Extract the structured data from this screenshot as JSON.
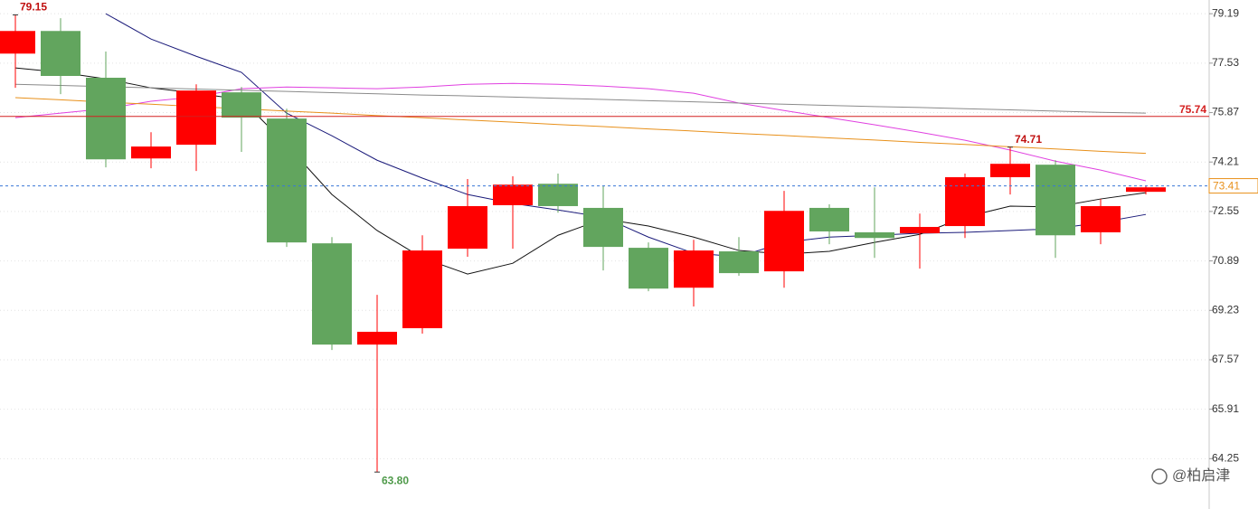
{
  "chart_data": {
    "type": "candlestick",
    "candles": {
      "open": [
        77.85,
        78.61,
        77.04,
        74.33,
        74.79,
        76.55,
        75.67,
        71.48,
        68.08,
        68.63,
        71.3,
        72.76,
        73.48,
        72.67,
        71.33,
        69.99,
        71.21,
        70.54,
        72.67,
        71.85,
        71.82,
        72.06,
        73.7,
        74.12,
        71.85,
        73.21
      ],
      "high": [
        79.15,
        79.04,
        77.92,
        75.21,
        76.82,
        76.73,
        76.0,
        71.69,
        69.75,
        71.75,
        73.64,
        73.73,
        73.82,
        73.42,
        71.51,
        71.6,
        71.69,
        73.24,
        72.79,
        73.36,
        72.48,
        73.82,
        74.71,
        74.27,
        72.97,
        73.42
      ],
      "low": [
        76.7,
        76.49,
        74.03,
        74.0,
        73.91,
        74.55,
        71.36,
        67.9,
        63.8,
        68.45,
        71.03,
        71.3,
        72.51,
        70.57,
        69.87,
        69.36,
        70.39,
        69.99,
        71.45,
        70.99,
        70.63,
        71.66,
        73.12,
        70.99,
        71.45,
        73.12
      ],
      "close": [
        78.61,
        77.1,
        74.3,
        74.73,
        76.61,
        75.7,
        71.51,
        68.08,
        68.51,
        71.24,
        72.73,
        73.45,
        72.73,
        71.36,
        69.96,
        71.24,
        70.48,
        72.57,
        71.88,
        71.66,
        72.03,
        73.7,
        74.15,
        71.75,
        72.73,
        73.36
      ]
    },
    "up_color": "#ff0000",
    "down_color": "#62a55e",
    "lines": [
      {
        "color": "#1a1a7a",
        "values": [
          null,
          null,
          79.19,
          78.34,
          77.76,
          77.22,
          75.85,
          75.09,
          74.27,
          73.67,
          73.12,
          72.82,
          72.6,
          72.36,
          71.69,
          71.15,
          71.03,
          71.51,
          71.69,
          71.75,
          71.82,
          71.85,
          71.91,
          71.97,
          72.18,
          72.45
        ]
      },
      {
        "color": "#111111",
        "values": [
          77.37,
          77.22,
          77.0,
          76.7,
          76.52,
          76.31,
          74.79,
          73.12,
          71.91,
          70.99,
          70.45,
          70.81,
          71.75,
          72.3,
          72.06,
          71.69,
          71.24,
          71.12,
          71.21,
          71.51,
          71.78,
          72.36,
          72.73,
          72.7,
          72.97,
          73.18
        ]
      },
      {
        "color": "#e040e0",
        "values": [
          75.7,
          75.85,
          76.0,
          76.25,
          76.4,
          76.67,
          76.73,
          76.7,
          76.67,
          76.73,
          76.82,
          76.85,
          76.82,
          76.76,
          76.67,
          76.52,
          76.19,
          75.94,
          75.7,
          75.46,
          75.21,
          74.94,
          74.61,
          74.24,
          73.94,
          73.58
        ]
      },
      {
        "color": "#e8901a",
        "values": [
          76.37,
          76.3,
          76.22,
          76.15,
          76.07,
          76.0,
          75.92,
          75.85,
          75.77,
          75.7,
          75.62,
          75.55,
          75.47,
          75.4,
          75.32,
          75.25,
          75.17,
          75.1,
          75.02,
          74.95,
          74.87,
          74.8,
          74.72,
          74.65,
          74.57,
          74.5
        ]
      },
      {
        "color": "#8a8a8a",
        "values": [
          76.82,
          76.78,
          76.74,
          76.7,
          76.66,
          76.62,
          76.58,
          76.54,
          76.5,
          76.46,
          76.43,
          76.39,
          76.35,
          76.31,
          76.27,
          76.23,
          76.19,
          76.15,
          76.11,
          76.07,
          76.04,
          76.0,
          75.96,
          75.92,
          75.88,
          75.85
        ]
      }
    ],
    "price_lines": [
      {
        "value": 75.74,
        "label": "75.74",
        "color": "#d42020",
        "dashed": false
      },
      {
        "value": 73.41,
        "label": "73.41",
        "color": "#3a78d8",
        "dashed": true,
        "label_color": "#e8901a"
      }
    ],
    "annotations": [
      {
        "index": 0,
        "field": "high",
        "label": "79.15",
        "color": "#c01010"
      },
      {
        "index": 22,
        "field": "high",
        "label": "74.71",
        "color": "#c01010"
      },
      {
        "index": 8,
        "field": "low",
        "label": "63.80",
        "color": "#4f9a4a"
      }
    ],
    "ylim": [
      62.56,
      79.65
    ],
    "yticks": [
      79.19,
      77.53,
      75.87,
      74.21,
      72.55,
      70.89,
      69.23,
      67.57,
      65.91,
      64.25
    ],
    "grid": true,
    "watermark": "@柏启津"
  }
}
